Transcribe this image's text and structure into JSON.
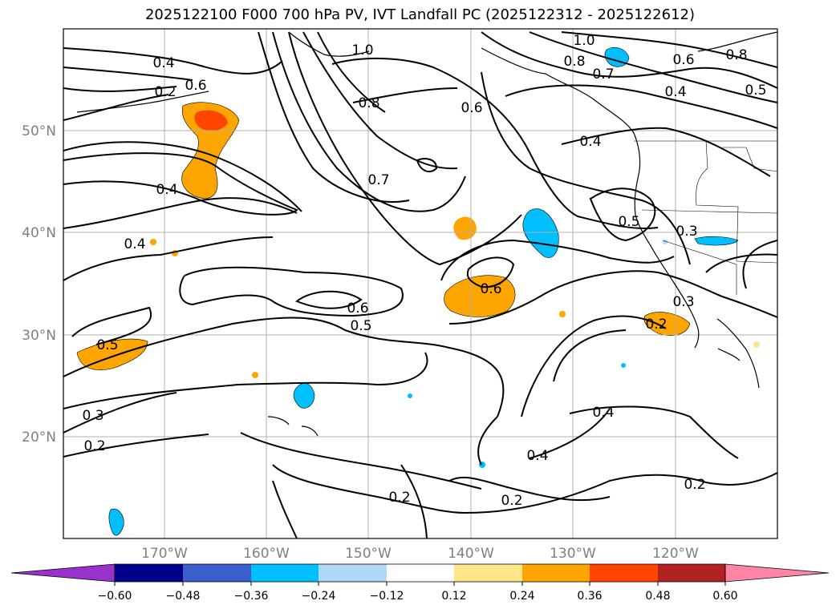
{
  "title": "2025122100 F000 700 hPa PV, IVT Landfall PC (2025122312 - 2025122612)",
  "map": {
    "lat_ticks": [
      "50°N",
      "40°N",
      "30°N",
      "20°N"
    ],
    "lon_ticks": [
      "170°W",
      "160°W",
      "150°W",
      "140°W",
      "130°W",
      "120°W"
    ],
    "grid": true,
    "line_color": "#000000",
    "grid_color": "#b0b0b0",
    "contour_labels": [
      "0.4",
      "0.2",
      "0.6",
      "1.0",
      "1.0",
      "0.8",
      "0.7",
      "0.8",
      "0.6",
      "0.5",
      "0.4",
      "0.6",
      "0.8",
      "0.7",
      "0.4",
      "0.4",
      "0.5",
      "0.3",
      "0.4",
      "0.3",
      "0.6",
      "0.5",
      "0.6",
      "0.2",
      "0.5",
      "0.3",
      "0.2",
      "0.4",
      "0.4",
      "0.2",
      "0.2",
      "0.2"
    ]
  },
  "colorbar": {
    "ticks": [
      "−0.60",
      "−0.48",
      "−0.36",
      "−0.24",
      "−0.12",
      "0.12",
      "0.24",
      "0.36",
      "0.48",
      "0.60"
    ],
    "colors": [
      "#9932cc",
      "#00008b",
      "#3a5fcd",
      "#00bfff",
      "#add8f7",
      "#ffffff",
      "#ffe58a",
      "#ffa500",
      "#ff4500",
      "#b22222",
      "#ff85a6"
    ],
    "extend": "both"
  }
}
